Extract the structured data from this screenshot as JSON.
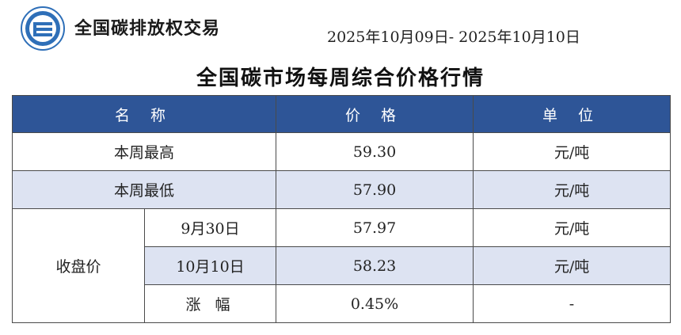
{
  "header": {
    "org_name": "全国碳排放权交易",
    "date_range": "2025年10月09日- 2025年10月10日",
    "title": "全国碳市场每周综合价格行情"
  },
  "colors": {
    "header_bg": "#2e5597",
    "shade_bg": "#dde3f2",
    "logo_blue": "#2e6fb8"
  },
  "table": {
    "headers": {
      "name": "名 称",
      "price": "价 格",
      "unit": "单 位"
    },
    "rows": {
      "high": {
        "label": "本周最高",
        "price": "59.30",
        "unit": "元/吨"
      },
      "low": {
        "label": "本周最低",
        "price": "57.90",
        "unit": "元/吨"
      },
      "close_group_label": "收盘价",
      "close1": {
        "date": "9月30日",
        "price": "57.97",
        "unit": "元/吨"
      },
      "close2": {
        "date": "10月10日",
        "price": "58.23",
        "unit": "元/吨"
      },
      "change": {
        "label": "涨 幅",
        "price": "0.45%",
        "unit": "-"
      }
    }
  }
}
